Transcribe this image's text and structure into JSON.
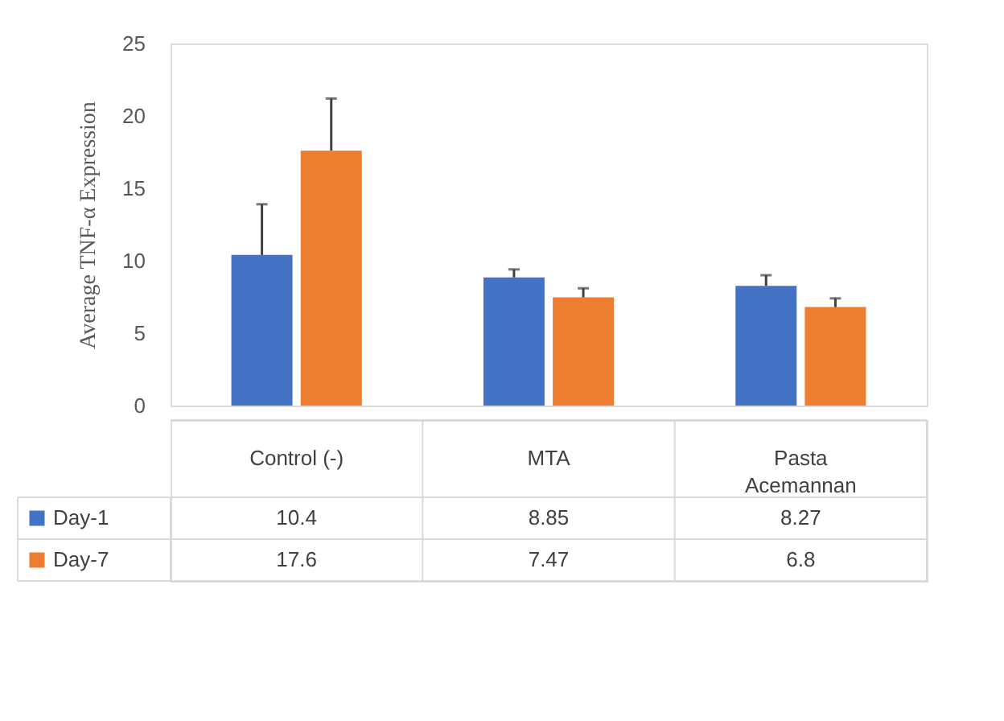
{
  "chart_data": {
    "type": "bar",
    "ylabel": "Average TNF-α Expression",
    "categories": [
      "Control (-)",
      "MTA",
      "Pasta Acemannan"
    ],
    "series": [
      {
        "name": "Day-1",
        "color": "#4472c4",
        "values": [
          10.4,
          8.85,
          8.27
        ],
        "errors": [
          [
            10.4,
            13.9
          ],
          [
            8.85,
            9.4
          ],
          [
            8.27,
            9.0
          ]
        ]
      },
      {
        "name": "Day-7",
        "color": "#ed7d31",
        "values": [
          17.6,
          7.47,
          6.8
        ],
        "errors": [
          [
            17.6,
            21.2
          ],
          [
            7.47,
            8.1
          ],
          [
            6.8,
            7.4
          ]
        ]
      }
    ],
    "ylim": [
      0,
      25
    ],
    "yticks": [
      0,
      5,
      10,
      15,
      20,
      25
    ],
    "grid": false,
    "legend": "bottom",
    "data_labels": true
  }
}
